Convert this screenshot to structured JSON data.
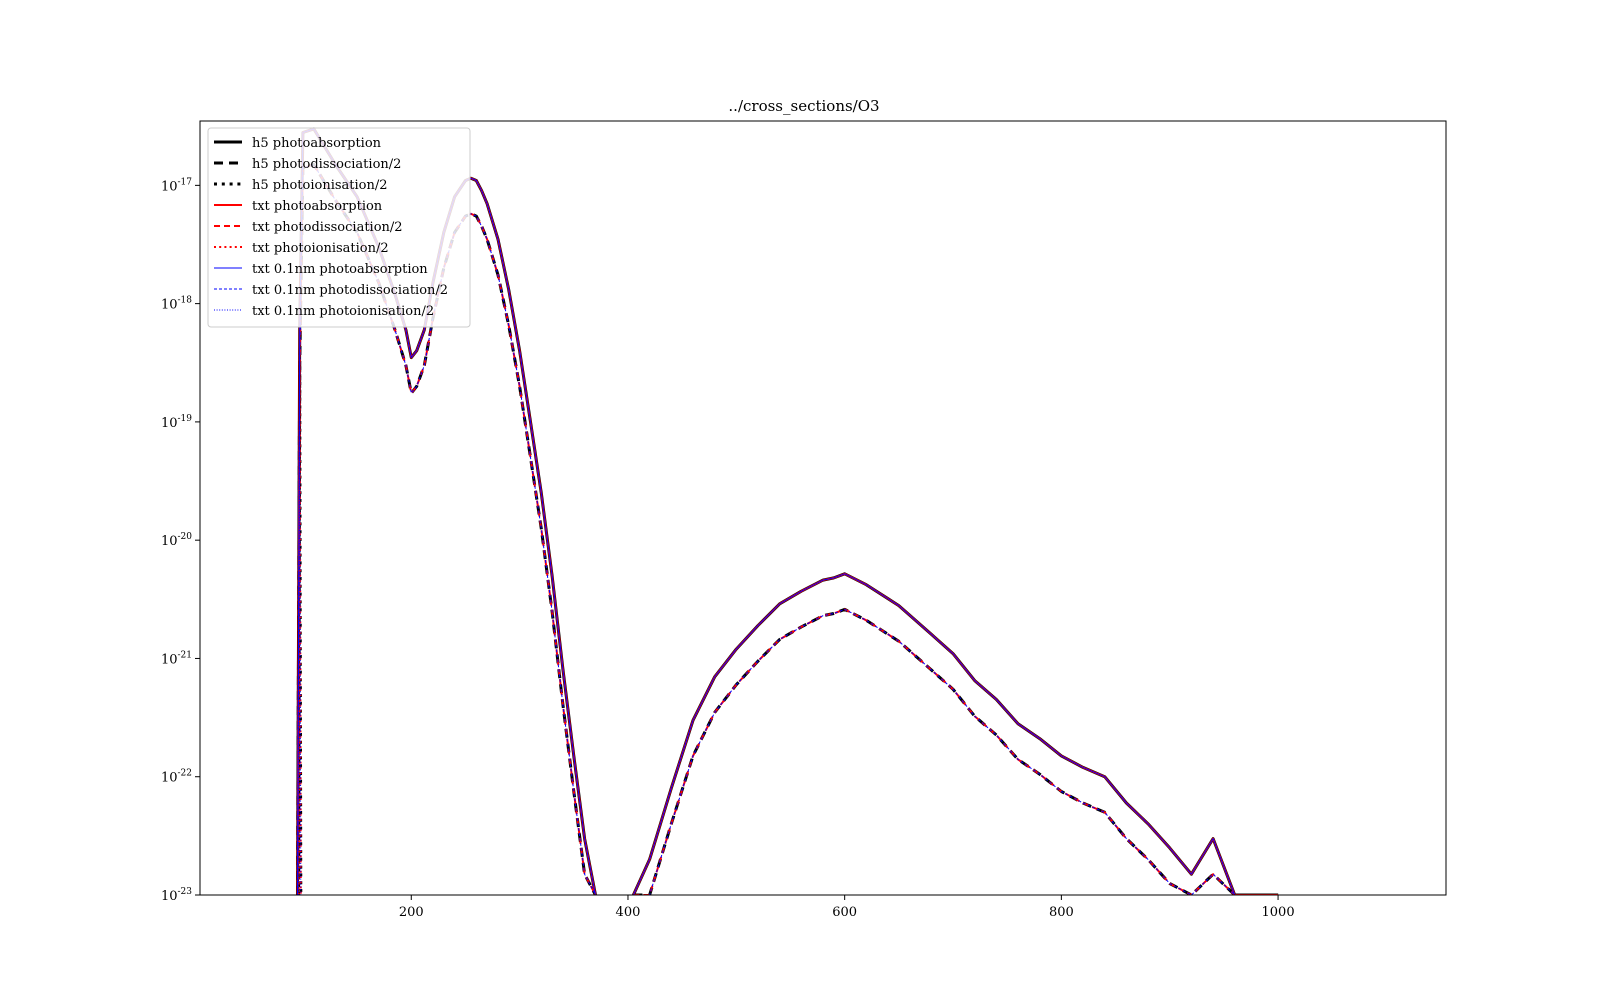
{
  "chart_data": {
    "type": "line",
    "title": "../cross_sections/O3",
    "xlabel": "",
    "ylabel": "",
    "yscale": "log",
    "xlim": [
      5,
      1155
    ],
    "ylim": [
      1e-23,
      3.5e-17
    ],
    "xticks": [
      200,
      400,
      600,
      800,
      1000
    ],
    "xtick_labels": [
      "200",
      "400",
      "600",
      "800",
      "1000"
    ],
    "yticks": [
      1e-23,
      1e-22,
      1e-21,
      1e-20,
      1e-19,
      1e-18,
      1e-17
    ],
    "ytick_labels": [
      {
        "base": "10",
        "exp": "-23"
      },
      {
        "base": "10",
        "exp": "-22"
      },
      {
        "base": "10",
        "exp": "-21"
      },
      {
        "base": "10",
        "exp": "-20"
      },
      {
        "base": "10",
        "exp": "-19"
      },
      {
        "base": "10",
        "exp": "-18"
      },
      {
        "base": "10",
        "exp": "-17"
      }
    ],
    "grid": false,
    "legend_position": "top-left",
    "colors": {
      "h5": "#000000",
      "txt": "#ff0000",
      "txt01": "#0000ff",
      "axes": "#000000"
    },
    "x": [
      95,
      97,
      100,
      110,
      130,
      150,
      170,
      185,
      195,
      200,
      205,
      212,
      220,
      230,
      240,
      250,
      255,
      260,
      265,
      270,
      280,
      290,
      300,
      310,
      320,
      330,
      340,
      350,
      360,
      370
    ],
    "absorption_y": [
      1e-23,
      6e-19,
      2.8e-17,
      3e-17,
      1.5e-17,
      8e-18,
      3e-18,
      1.2e-18,
      6e-19,
      3.5e-19,
      4e-19,
      6e-19,
      1.5e-18,
      4e-18,
      8e-18,
      1.1e-17,
      1.15e-17,
      1.1e-17,
      9e-18,
      7e-18,
      3.5e-18,
      1.3e-18,
      4e-19,
      1e-19,
      2.5e-20,
      5e-21,
      8e-22,
      1.5e-22,
      3e-23,
      1e-23
    ],
    "dissociation_y": [
      1e-23,
      3e-19,
      1.4e-17,
      1.5e-17,
      7.5e-18,
      4e-18,
      1.5e-18,
      6e-19,
      3e-19,
      1.75e-19,
      2e-19,
      3e-19,
      7.5e-19,
      2e-18,
      4e-18,
      5.5e-18,
      5.75e-18,
      5.5e-18,
      4.5e-18,
      3.5e-18,
      1.75e-18,
      6.5e-19,
      2e-19,
      5e-20,
      1.25e-20,
      2.5e-21,
      4e-22,
      7.5e-23,
      1.5e-23,
      1e-23
    ],
    "x2": [
      405,
      420,
      440,
      460,
      480,
      500,
      520,
      540,
      560,
      580,
      590,
      600,
      620,
      650,
      680,
      700,
      720,
      740,
      760,
      780,
      800,
      820,
      840,
      860,
      880,
      900,
      920,
      940,
      960,
      980,
      1000
    ],
    "absorption2_y": [
      1e-23,
      2e-23,
      8e-23,
      3e-22,
      7e-22,
      1.2e-21,
      1.9e-21,
      2.9e-21,
      3.7e-21,
      4.6e-21,
      4.8e-21,
      5.2e-21,
      4.2e-21,
      2.8e-21,
      1.6e-21,
      1.1e-21,
      6.5e-22,
      4.5e-22,
      2.8e-22,
      2.1e-22,
      1.5e-22,
      1.2e-22,
      1e-22,
      6e-23,
      4e-23,
      2.5e-23,
      1.5e-23,
      3e-23,
      1e-23,
      1e-23,
      1e-23
    ],
    "dissociation2_y": [
      1e-23,
      1e-23,
      4e-23,
      1.5e-22,
      3.5e-22,
      6e-22,
      9.5e-22,
      1.45e-21,
      1.85e-21,
      2.3e-21,
      2.4e-21,
      2.6e-21,
      2.1e-21,
      1.4e-21,
      8e-22,
      5.5e-22,
      3.25e-22,
      2.25e-22,
      1.4e-22,
      1.05e-22,
      7.5e-23,
      6e-23,
      5e-23,
      3e-23,
      2e-23,
      1.25e-23,
      1e-23,
      1.5e-23,
      1e-23,
      1e-23,
      1e-23
    ],
    "series": [
      {
        "name": "h5 photoabsorption",
        "color": "#000000",
        "dash": "solid",
        "width": 3
      },
      {
        "name": "h5 photodissociation/2",
        "color": "#000000",
        "dash": "dashed",
        "width": 3
      },
      {
        "name": "h5 photoionisation/2",
        "color": "#000000",
        "dash": "dotted",
        "width": 3
      },
      {
        "name": "txt photoabsorption",
        "color": "#ff0000",
        "dash": "solid",
        "width": 2
      },
      {
        "name": "txt photodissociation/2",
        "color": "#ff0000",
        "dash": "dashed",
        "width": 2
      },
      {
        "name": "txt photoionisation/2",
        "color": "#ff0000",
        "dash": "dotted",
        "width": 2
      },
      {
        "name": "txt 0.1nm photoabsorption",
        "color": "#0000ff",
        "dash": "solid",
        "width": 1
      },
      {
        "name": "txt 0.1nm photodissociation/2",
        "color": "#0000ff",
        "dash": "dashed",
        "width": 1
      },
      {
        "name": "txt 0.1nm photoionisation/2",
        "color": "#0000ff",
        "dash": "dotted",
        "width": 1
      }
    ]
  }
}
